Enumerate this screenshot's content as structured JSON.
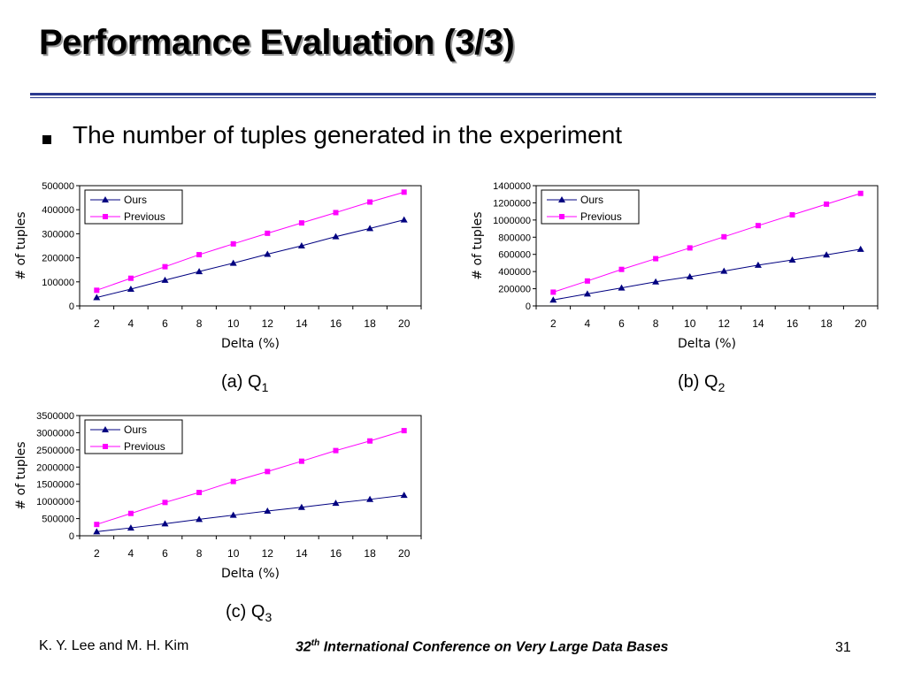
{
  "slide": {
    "title": "Performance Evaluation (3/3)",
    "bullet": "The number of tuples generated in the experiment"
  },
  "captions": [
    {
      "prefix": "(a) Q",
      "sub": "1"
    },
    {
      "prefix": "(b) Q",
      "sub": "2"
    },
    {
      "prefix": "(c) Q",
      "sub": "3"
    }
  ],
  "footer": {
    "left": "K. Y. Lee and M. H. Kim",
    "center_num": "32",
    "center_sup": "th",
    "center_rest": " International Conference on Very Large Data Bases",
    "page": "31"
  },
  "colors": {
    "ours": "#000080",
    "previous": "#ff00ff",
    "rule": "#2b3a8f"
  },
  "chart_data": [
    {
      "type": "line",
      "xlabel": "Delta (%)",
      "ylabel": "# of tuples",
      "x": [
        2,
        4,
        6,
        8,
        10,
        12,
        14,
        16,
        18,
        20
      ],
      "ylim": [
        0,
        500000
      ],
      "yticks": [
        "0",
        "100000",
        "200000",
        "300000",
        "400000",
        "500000"
      ],
      "grid": false,
      "legend": "top-left",
      "series": [
        {
          "name": "Ours",
          "marker": "triangle",
          "values": [
            35000,
            70000,
            107000,
            143000,
            178000,
            215000,
            250000,
            288000,
            322000,
            358000
          ]
        },
        {
          "name": "Previous",
          "marker": "square",
          "values": [
            65000,
            115000,
            163000,
            213000,
            258000,
            302000,
            345000,
            388000,
            432000,
            473000
          ]
        }
      ]
    },
    {
      "type": "line",
      "xlabel": "Delta (%)",
      "ylabel": "# of tuples",
      "x": [
        2,
        4,
        6,
        8,
        10,
        12,
        14,
        16,
        18,
        20
      ],
      "ylim": [
        0,
        1400000
      ],
      "yticks": [
        "0",
        "200000",
        "400000",
        "600000",
        "800000",
        "1000000",
        "1200000",
        "1400000"
      ],
      "grid": false,
      "legend": "top-left",
      "series": [
        {
          "name": "Ours",
          "marker": "triangle",
          "values": [
            70000,
            140000,
            210000,
            280000,
            340000,
            405000,
            475000,
            535000,
            595000,
            660000
          ]
        },
        {
          "name": "Previous",
          "marker": "square",
          "values": [
            160000,
            290000,
            425000,
            550000,
            675000,
            805000,
            935000,
            1060000,
            1185000,
            1310000
          ]
        }
      ]
    },
    {
      "type": "line",
      "xlabel": "Delta (%)",
      "ylabel": "# of tuples",
      "x": [
        2,
        4,
        6,
        8,
        10,
        12,
        14,
        16,
        18,
        20
      ],
      "ylim": [
        0,
        3500000
      ],
      "yticks": [
        "0",
        "500000",
        "1000000",
        "1500000",
        "2000000",
        "2500000",
        "3000000",
        "3500000"
      ],
      "grid": false,
      "legend": "top-left",
      "series": [
        {
          "name": "Ours",
          "marker": "triangle",
          "values": [
            120000,
            230000,
            350000,
            480000,
            600000,
            720000,
            830000,
            950000,
            1060000,
            1180000
          ]
        },
        {
          "name": "Previous",
          "marker": "square",
          "values": [
            330000,
            650000,
            970000,
            1260000,
            1580000,
            1870000,
            2170000,
            2480000,
            2760000,
            3060000
          ]
        }
      ]
    }
  ]
}
